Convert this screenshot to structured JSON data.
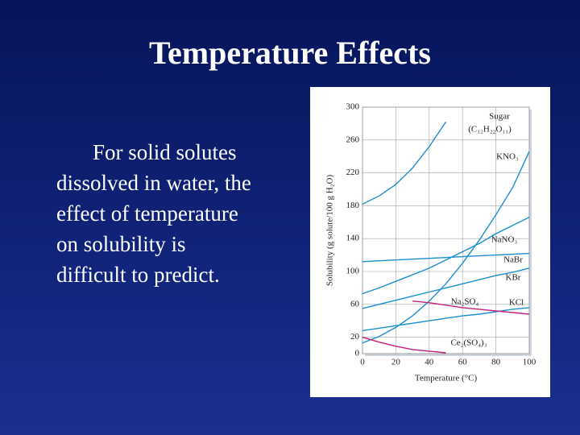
{
  "slide": {
    "title": "Temperature Effects",
    "body": [
      "For solid solutes",
      "dissolved in water, the",
      "effect of temperature",
      "on solubility is",
      "difficult to predict."
    ]
  },
  "chart_data": {
    "type": "line",
    "xlabel": "Temperature (°C)",
    "ylabel": "Solubility (g solute/100 g H₂O)",
    "x": [
      0,
      10,
      20,
      30,
      40,
      50,
      60,
      70,
      80,
      90,
      100
    ],
    "xlim": [
      0,
      100
    ],
    "xticks": [
      0,
      20,
      40,
      60,
      80,
      100
    ],
    "ylim": [
      0,
      300
    ],
    "yticks": [
      0,
      20,
      60,
      100,
      140,
      180,
      220,
      260,
      300
    ],
    "grid": true,
    "series": [
      {
        "name": "Sugar",
        "formula": "(C₁₂H₂₂O₁₁)",
        "color": "#1a8fd0",
        "values": [
          182,
          192,
          206,
          226,
          252,
          282,
          null,
          null,
          null,
          null,
          null
        ]
      },
      {
        "name": "KNO₃",
        "color": "#1a8fd0",
        "values": [
          13,
          21,
          32,
          46,
          64,
          85,
          110,
          138,
          169,
          202,
          246
        ]
      },
      {
        "name": "NaNO₃",
        "color": "#1a8fd0",
        "values": [
          73,
          80,
          88,
          96,
          104,
          114,
          124,
          134,
          146,
          156,
          166
        ]
      },
      {
        "name": "NaBr",
        "color": "#1a8fd0",
        "values": [
          112,
          113,
          114,
          115,
          116,
          117,
          118,
          119,
          120,
          121,
          122
        ]
      },
      {
        "name": "KBr",
        "color": "#1a8fd0",
        "values": [
          55,
          60,
          65,
          70,
          75,
          80,
          85,
          90,
          95,
          99,
          104
        ]
      },
      {
        "name": "KCl",
        "color": "#1a8fd0",
        "values": [
          28,
          31,
          34,
          37,
          40,
          43,
          46,
          48,
          51,
          54,
          56
        ]
      },
      {
        "name": "Na₂SO₄",
        "color": "#c0207a",
        "values": [
          null,
          null,
          null,
          64,
          62,
          59,
          56,
          54,
          52,
          50,
          48
        ]
      },
      {
        "name": "Ce₂(SO₄)₃",
        "color": "#c0207a",
        "values": [
          20,
          14,
          9,
          5,
          3,
          1,
          null,
          null,
          null,
          null,
          null
        ]
      }
    ]
  }
}
